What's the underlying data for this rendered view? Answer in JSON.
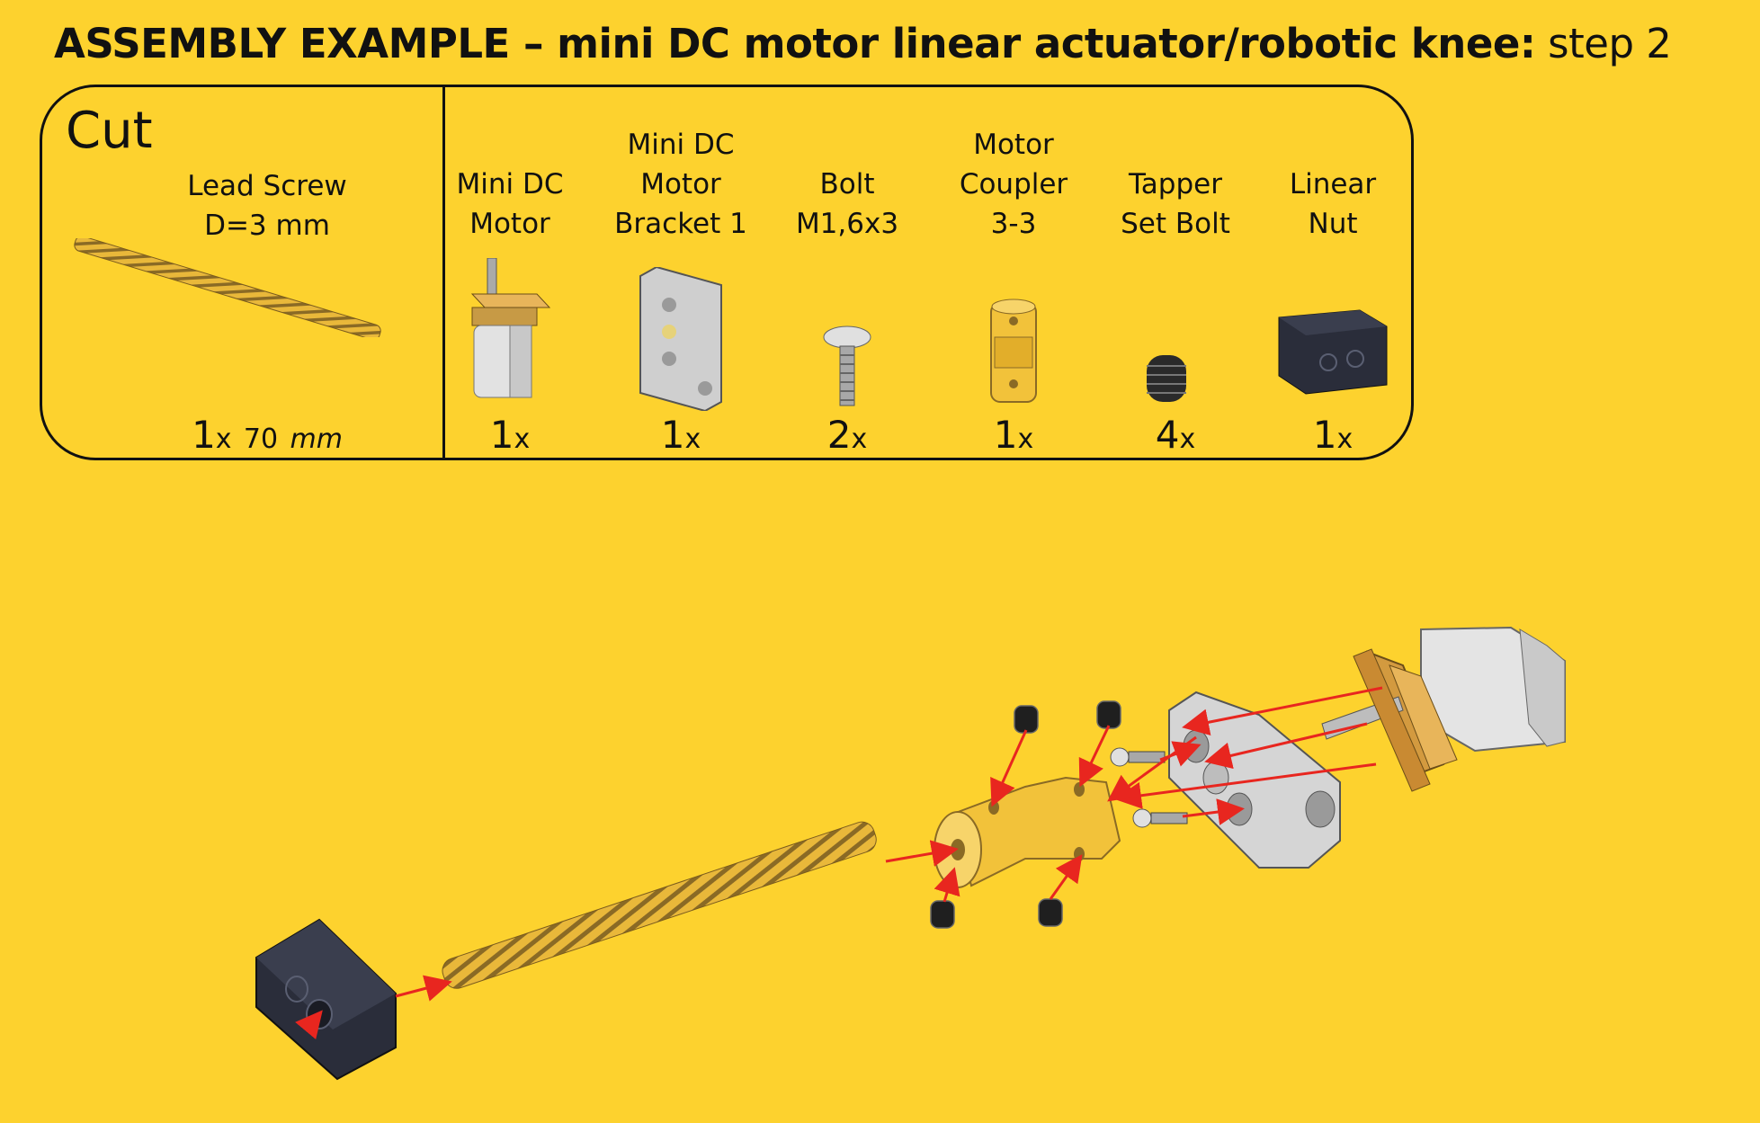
{
  "title": {
    "bold": "ASSEMBLY EXAMPLE – mini DC motor linear actuator/robotic knee:",
    "light": " step 2"
  },
  "cut_section": {
    "heading": "Cut",
    "item": {
      "line1": "Lead Screw",
      "line2": "D=3 mm",
      "qty": "1",
      "x": "x",
      "length": "70",
      "unit": "mm"
    }
  },
  "parts": [
    {
      "line1": "",
      "line2": "Mini DC",
      "line3": "Motor",
      "qty": "1",
      "x": "x"
    },
    {
      "line1": "Mini DC",
      "line2": "Motor",
      "line3": "Bracket 1",
      "qty": "1",
      "x": "x"
    },
    {
      "line1": "",
      "line2": "Bolt",
      "line3": "M1,6x3",
      "qty": "2",
      "x": "x"
    },
    {
      "line1": "Motor",
      "line2": "Coupler",
      "line3": "3-3",
      "qty": "1",
      "x": "x"
    },
    {
      "line1": "",
      "line2": "Tapper",
      "line3": "Set Bolt",
      "qty": "4",
      "x": "x"
    },
    {
      "line1": "",
      "line2": "Linear",
      "line3": "Nut",
      "qty": "1",
      "x": "x"
    }
  ],
  "colors": {
    "background": "#FDD22E",
    "arrow": "#E8261F",
    "brass": "#F2C23A",
    "nut": "#2A2D3A",
    "aluminum": "#D8D8D8"
  }
}
